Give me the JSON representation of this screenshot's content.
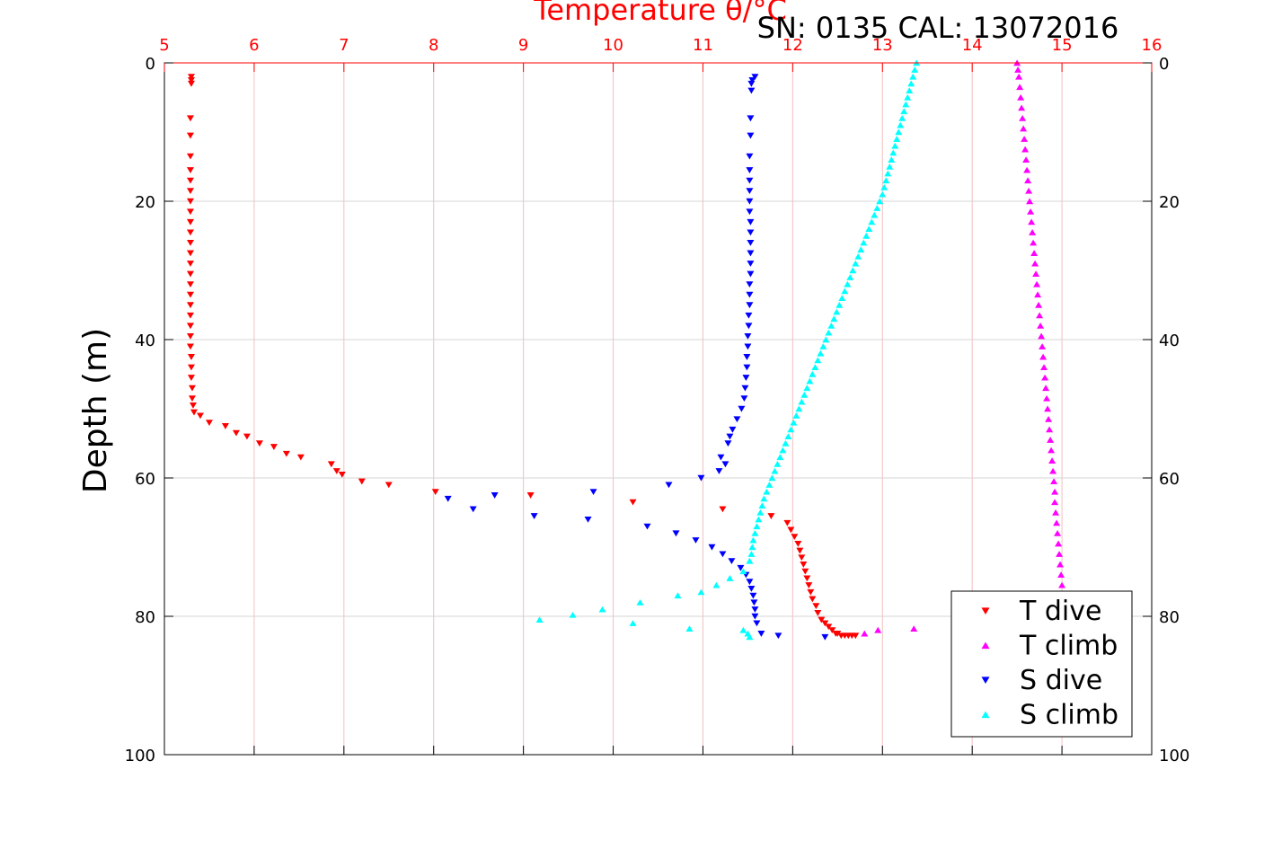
{
  "chart_data": {
    "type": "scatter",
    "title": "Temperature θ/°C",
    "subtitle": "SN: 0135  CAL: 13072016",
    "xlabel": "Temperature θ/°C",
    "ylabel": "Depth (m)",
    "xlim": [
      5,
      16
    ],
    "ylim": [
      0,
      100
    ],
    "y_reversed": true,
    "xticks": [
      "5",
      "6",
      "7",
      "8",
      "9",
      "10",
      "11",
      "12",
      "13",
      "14",
      "15",
      "16"
    ],
    "yticks": [
      "0",
      "20",
      "40",
      "60",
      "80",
      "100"
    ],
    "grid": true,
    "legend_position": "bottom-right",
    "colors": {
      "axis_top": "#ff0000",
      "grid_x": "#f2c0c0",
      "grid_y": "#d4d4d4",
      "t_dive": "#ff0000",
      "t_climb": "#ff00ff",
      "s_dive": "#0000ff",
      "s_climb": "#00ffff"
    },
    "series": [
      {
        "name": "T dive",
        "marker": "triangle-down",
        "color": "#ff0000",
        "x": [
          5.3,
          5.3,
          5.3,
          5.29,
          5.29,
          5.29,
          5.29,
          5.29,
          5.29,
          5.29,
          5.29,
          5.29,
          5.29,
          5.29,
          5.29,
          5.29,
          5.29,
          5.29,
          5.29,
          5.29,
          5.29,
          5.29,
          5.29,
          5.29,
          5.3,
          5.3,
          5.3,
          5.31,
          5.31,
          5.32,
          5.33,
          5.4,
          5.5,
          5.68,
          5.8,
          5.92,
          6.06,
          6.22,
          6.36,
          6.52,
          6.86,
          6.92,
          6.98,
          7.2,
          7.5,
          8.02,
          9.08,
          10.22,
          11.22,
          11.76,
          11.94,
          11.98,
          12.02,
          12.06,
          12.08,
          12.1,
          12.12,
          12.14,
          12.16,
          12.18,
          12.2,
          12.22,
          12.26,
          12.28,
          12.32,
          12.36,
          12.4,
          12.44,
          12.48,
          12.5,
          12.54,
          12.58,
          12.62,
          12.66,
          12.7
        ],
        "y": [
          2,
          2.5,
          3,
          8,
          10.5,
          13.5,
          15.5,
          17,
          18.5,
          20,
          21.5,
          23,
          24.5,
          26,
          27.5,
          29,
          30.5,
          32,
          33.5,
          35,
          36.5,
          38,
          39.5,
          41,
          42.5,
          44,
          45.5,
          47,
          48.5,
          49.5,
          50.5,
          51,
          52,
          52.5,
          53.5,
          54,
          55,
          55.5,
          56.5,
          57,
          58,
          59,
          59.5,
          60.5,
          61,
          62,
          62.5,
          63.5,
          64.5,
          65.5,
          66.5,
          67.5,
          68.5,
          69.5,
          70.5,
          71.5,
          72.5,
          73.5,
          74.5,
          75.5,
          76.5,
          77.5,
          78.5,
          79.5,
          80.5,
          81,
          81.5,
          82,
          82.5,
          82.5,
          82.8,
          82.8,
          82.8,
          82.8,
          82.8
        ]
      },
      {
        "name": "T climb",
        "marker": "triangle-up",
        "color": "#ff00ff",
        "x": [
          14.5,
          14.51,
          14.52,
          14.53,
          14.54,
          14.55,
          14.56,
          14.57,
          14.58,
          14.59,
          14.6,
          14.61,
          14.62,
          14.63,
          14.64,
          14.65,
          14.66,
          14.67,
          14.68,
          14.69,
          14.7,
          14.71,
          14.72,
          14.73,
          14.74,
          14.75,
          14.76,
          14.77,
          14.78,
          14.79,
          14.8,
          14.81,
          14.82,
          14.83,
          14.84,
          14.85,
          14.86,
          14.87,
          14.88,
          14.89,
          14.9,
          14.91,
          14.92,
          14.92,
          14.93,
          14.94,
          14.95,
          14.96,
          14.97,
          14.98,
          14.99,
          15.0,
          15.01,
          15.02,
          15.03,
          15.04,
          15.05,
          15.06,
          13.35,
          12.95,
          12.8
        ],
        "y": [
          0,
          1,
          2,
          3.5,
          5,
          6.5,
          8,
          9.5,
          11,
          12.5,
          14,
          15.5,
          17,
          18.5,
          20,
          21.5,
          23,
          24.5,
          26,
          27.5,
          29,
          30.5,
          32,
          33.5,
          35,
          36.5,
          38,
          39.5,
          41,
          42.5,
          44,
          45.5,
          47,
          48.5,
          50,
          51.5,
          53,
          54.5,
          56,
          57.5,
          59,
          60.5,
          62,
          63.5,
          65,
          66.5,
          68,
          69.5,
          71,
          72.5,
          74,
          75.5,
          77,
          78.5,
          80,
          80.5,
          81,
          81.5,
          81.8,
          82,
          82.5
        ]
      },
      {
        "name": "S dive",
        "marker": "triangle-down",
        "color": "#0000ff",
        "x": [
          11.58,
          11.55,
          11.54,
          11.54,
          11.53,
          11.53,
          11.52,
          11.52,
          11.52,
          11.52,
          11.52,
          11.52,
          11.53,
          11.53,
          11.53,
          11.53,
          11.53,
          11.53,
          11.52,
          11.52,
          11.52,
          11.51,
          11.51,
          11.5,
          11.5,
          11.49,
          11.49,
          11.48,
          11.47,
          11.46,
          11.43,
          11.38,
          11.33,
          11.3,
          11.28,
          11.2,
          11.25,
          11.18,
          10.98,
          10.62,
          9.78,
          8.68,
          8.16,
          8.44,
          9.12,
          9.72,
          10.38,
          10.7,
          10.92,
          11.1,
          11.22,
          11.32,
          11.42,
          11.48,
          11.52,
          11.54,
          11.56,
          11.57,
          11.58,
          11.58,
          11.6,
          11.65,
          11.84,
          12.36
        ],
        "y": [
          2,
          2.5,
          3,
          4,
          8,
          10.5,
          13.5,
          15.5,
          17,
          18.5,
          20,
          21.5,
          23,
          24.5,
          26,
          27.5,
          29,
          30.5,
          32,
          33.5,
          35,
          36.5,
          38,
          39.5,
          41,
          42.5,
          44,
          45.5,
          47,
          48.5,
          50,
          51.5,
          53,
          54,
          55,
          57,
          58,
          59,
          60,
          61,
          62,
          62.5,
          63,
          64.5,
          65.5,
          66,
          67,
          68,
          69,
          70,
          71,
          72,
          73,
          74,
          75,
          76,
          77,
          78,
          79,
          80,
          81,
          82.5,
          82.8,
          83
        ]
      },
      {
        "name": "S climb",
        "marker": "triangle-up",
        "color": "#00ffff",
        "x": [
          13.38,
          13.36,
          13.34,
          13.32,
          13.3,
          13.28,
          13.26,
          13.24,
          13.22,
          13.2,
          13.18,
          13.16,
          13.14,
          13.12,
          13.1,
          13.08,
          13.06,
          13.04,
          13.02,
          13.0,
          12.97,
          12.94,
          12.91,
          12.88,
          12.85,
          12.82,
          12.79,
          12.76,
          12.73,
          12.7,
          12.67,
          12.64,
          12.61,
          12.58,
          12.55,
          12.52,
          12.49,
          12.46,
          12.43,
          12.4,
          12.37,
          12.34,
          12.31,
          12.28,
          12.25,
          12.22,
          12.19,
          12.16,
          12.13,
          12.1,
          12.07,
          12.04,
          12.01,
          11.98,
          11.95,
          11.92,
          11.89,
          11.86,
          11.83,
          11.8,
          11.77,
          11.74,
          11.71,
          11.68,
          11.66,
          11.64,
          11.62,
          11.6,
          11.58,
          11.56,
          11.55,
          11.54,
          11.52,
          11.45,
          11.3,
          11.15,
          10.98,
          10.72,
          10.3,
          9.88,
          9.55,
          9.18,
          10.22,
          10.85,
          11.45,
          11.5,
          11.52
        ],
        "y": [
          0,
          1,
          2,
          3,
          4,
          5,
          6,
          7,
          8,
          9,
          10,
          11,
          12,
          13,
          14,
          15,
          16,
          17,
          18,
          19,
          20,
          21,
          22,
          23,
          24,
          25,
          26,
          27,
          28,
          29,
          30,
          31,
          32,
          33,
          34,
          35,
          36,
          37,
          38,
          39,
          40,
          41,
          42,
          43,
          44,
          45,
          46,
          47,
          48,
          49,
          50,
          51,
          52,
          53,
          54,
          55,
          56,
          57,
          58,
          59,
          60,
          61,
          62,
          63,
          64,
          65,
          66,
          67,
          68,
          69,
          70,
          71,
          72,
          73.5,
          74.5,
          75.5,
          76.5,
          77,
          78,
          79,
          79.8,
          80.5,
          81,
          81.8,
          82,
          82.5,
          83
        ]
      }
    ]
  }
}
